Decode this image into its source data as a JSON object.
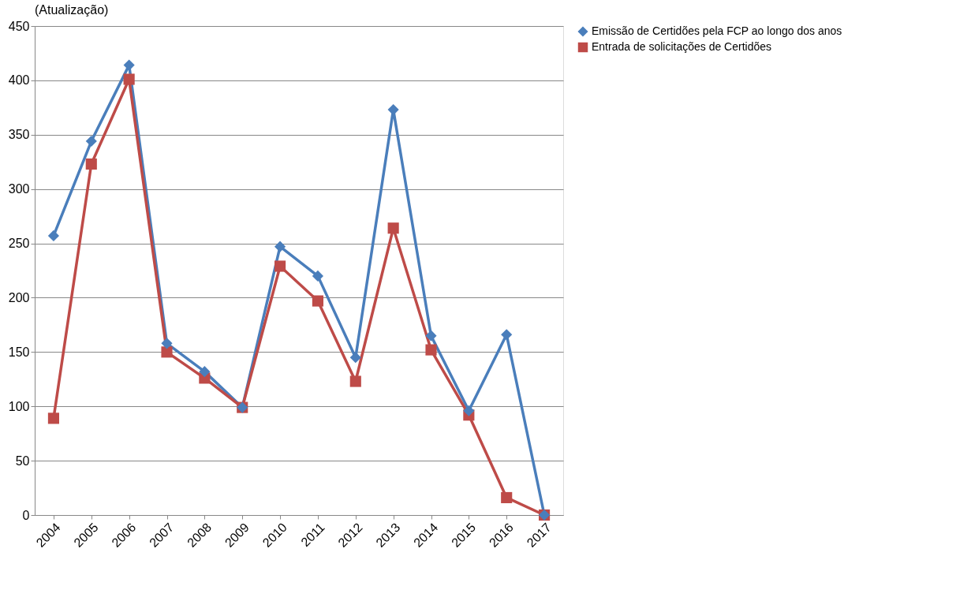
{
  "chart_data": {
    "type": "line",
    "annotations": [
      "(Atualização)"
    ],
    "categories": [
      "2004",
      "2005",
      "2006",
      "2007",
      "2008",
      "2009",
      "2010",
      "2011",
      "2012",
      "2013",
      "2014",
      "2015",
      "2016",
      "2017"
    ],
    "series": [
      {
        "name": "Emissão de Certidões pela FCP ao longo dos anos",
        "color": "#4a7ebb",
        "marker": "diamond",
        "values": [
          257,
          344,
          414,
          158,
          132,
          99,
          247,
          220,
          145,
          373,
          165,
          96,
          166,
          0
        ]
      },
      {
        "name": "Entrada de solicitações de Certidões",
        "color": "#be4b48",
        "marker": "square",
        "values": [
          89,
          323,
          401,
          150,
          126,
          99,
          229,
          197,
          123,
          264,
          152,
          92,
          16,
          0
        ]
      }
    ],
    "ylim": [
      0,
      450
    ],
    "yticks": [
      0,
      50,
      100,
      150,
      200,
      250,
      300,
      350,
      400,
      450
    ],
    "grid": "y",
    "legend": "right"
  }
}
